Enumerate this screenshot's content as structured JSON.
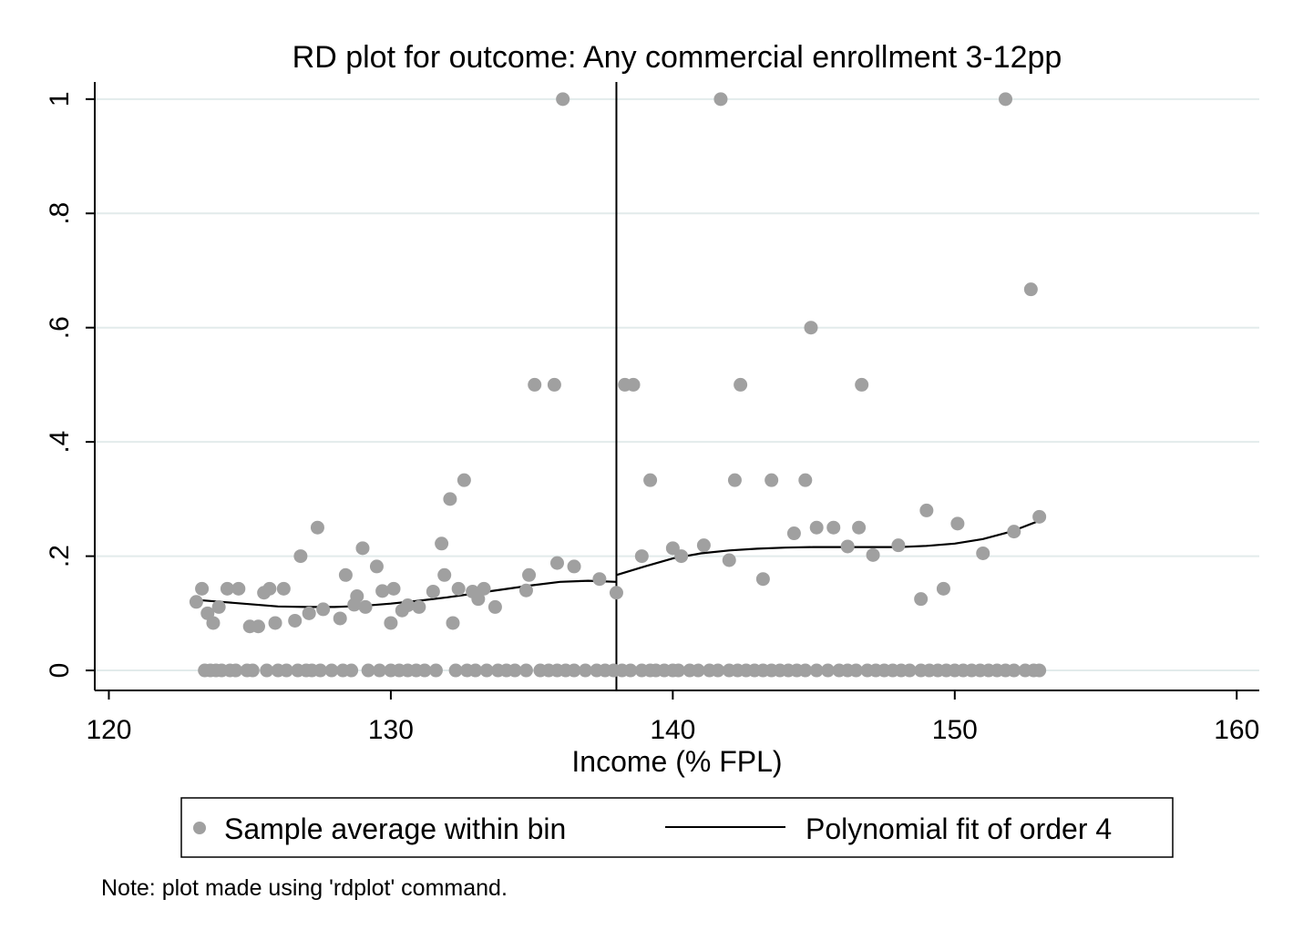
{
  "chart_data": {
    "type": "scatter",
    "title": "RD plot for outcome: Any commercial enrollment 3-12pp",
    "xlabel": "Income (% FPL)",
    "ylabel": "",
    "xlim": [
      119.5,
      160.8
    ],
    "ylim": [
      -0.035,
      1.03
    ],
    "x_ticks": [
      120,
      130,
      140,
      150,
      160
    ],
    "x_tick_labels": [
      "120",
      "130",
      "140",
      "150",
      "160"
    ],
    "y_ticks": [
      0,
      0.2,
      0.4,
      0.6,
      0.8,
      1
    ],
    "y_tick_labels": [
      "0",
      ".2",
      ".4",
      ".6",
      ".8",
      "1"
    ],
    "grid": true,
    "cutoff": 138,
    "legend": {
      "position": "bottom",
      "entries": [
        "Sample average within bin",
        "Polynomial fit of order 4"
      ]
    },
    "note": "Note: plot made using 'rdplot' command.",
    "colors": {
      "points": "#a0a0a0",
      "fit": "#000000",
      "grid": "#e2ebeb",
      "axis": "#000000"
    },
    "series": [
      {
        "name": "Sample average within bin",
        "kind": "points",
        "points": [
          [
            123.1,
            0.12
          ],
          [
            123.3,
            0.143
          ],
          [
            123.5,
            0.1
          ],
          [
            123.7,
            0.083
          ],
          [
            123.9,
            0.111
          ],
          [
            124.2,
            0.143
          ],
          [
            124.6,
            0.143
          ],
          [
            125.0,
            0.077
          ],
          [
            125.3,
            0.077
          ],
          [
            125.5,
            0.136
          ],
          [
            125.7,
            0.143
          ],
          [
            125.9,
            0.083
          ],
          [
            126.2,
            0.143
          ],
          [
            126.6,
            0.087
          ],
          [
            126.8,
            0.2
          ],
          [
            127.1,
            0.1
          ],
          [
            127.4,
            0.25
          ],
          [
            127.6,
            0.107
          ],
          [
            128.2,
            0.091
          ],
          [
            128.4,
            0.167
          ],
          [
            128.7,
            0.115
          ],
          [
            128.8,
            0.13
          ],
          [
            129.0,
            0.214
          ],
          [
            129.1,
            0.111
          ],
          [
            129.5,
            0.182
          ],
          [
            129.7,
            0.139
          ],
          [
            130.0,
            0.083
          ],
          [
            130.1,
            0.143
          ],
          [
            130.4,
            0.105
          ],
          [
            130.6,
            0.114
          ],
          [
            131.0,
            0.111
          ],
          [
            131.5,
            0.138
          ],
          [
            131.8,
            0.222
          ],
          [
            131.9,
            0.167
          ],
          [
            132.1,
            0.3
          ],
          [
            132.2,
            0.083
          ],
          [
            132.4,
            0.143
          ],
          [
            132.6,
            0.333
          ],
          [
            132.9,
            0.138
          ],
          [
            133.1,
            0.125
          ],
          [
            133.3,
            0.143
          ],
          [
            133.7,
            0.111
          ],
          [
            134.8,
            0.14
          ],
          [
            134.9,
            0.167
          ],
          [
            135.1,
            0.5
          ],
          [
            135.8,
            0.5
          ],
          [
            135.9,
            0.188
          ],
          [
            136.1,
            1.0
          ],
          [
            136.5,
            0.182
          ],
          [
            137.4,
            0.16
          ],
          [
            138.0,
            0.136
          ],
          [
            138.3,
            0.5
          ],
          [
            138.6,
            0.5
          ],
          [
            138.9,
            0.2
          ],
          [
            139.2,
            0.333
          ],
          [
            140.0,
            0.214
          ],
          [
            140.3,
            0.2
          ],
          [
            141.1,
            0.219
          ],
          [
            141.7,
            1.0
          ],
          [
            142.0,
            0.193
          ],
          [
            142.2,
            0.333
          ],
          [
            142.4,
            0.5
          ],
          [
            143.2,
            0.16
          ],
          [
            143.5,
            0.333
          ],
          [
            144.3,
            0.24
          ],
          [
            144.7,
            0.333
          ],
          [
            144.9,
            0.6
          ],
          [
            145.1,
            0.25
          ],
          [
            145.7,
            0.25
          ],
          [
            146.2,
            0.217
          ],
          [
            146.6,
            0.25
          ],
          [
            146.7,
            0.5
          ],
          [
            147.1,
            0.202
          ],
          [
            148.0,
            0.219
          ],
          [
            148.8,
            0.125
          ],
          [
            149.0,
            0.28
          ],
          [
            149.6,
            0.143
          ],
          [
            150.1,
            0.257
          ],
          [
            151.0,
            0.205
          ],
          [
            151.8,
            1.0
          ],
          [
            152.1,
            0.243
          ],
          [
            152.7,
            0.667
          ],
          [
            153.0,
            0.269
          ],
          [
            123.4,
            0
          ],
          [
            123.6,
            0
          ],
          [
            123.8,
            0
          ],
          [
            124.0,
            0
          ],
          [
            124.3,
            0
          ],
          [
            124.5,
            0
          ],
          [
            124.9,
            0
          ],
          [
            125.1,
            0
          ],
          [
            125.6,
            0
          ],
          [
            126.0,
            0
          ],
          [
            126.3,
            0
          ],
          [
            126.7,
            0
          ],
          [
            127.0,
            0
          ],
          [
            127.2,
            0
          ],
          [
            127.5,
            0
          ],
          [
            127.9,
            0
          ],
          [
            128.3,
            0
          ],
          [
            128.6,
            0
          ],
          [
            129.2,
            0
          ],
          [
            129.6,
            0
          ],
          [
            130.0,
            0
          ],
          [
            130.3,
            0
          ],
          [
            130.6,
            0
          ],
          [
            130.9,
            0
          ],
          [
            131.2,
            0
          ],
          [
            131.6,
            0
          ],
          [
            132.3,
            0
          ],
          [
            132.7,
            0
          ],
          [
            133.0,
            0
          ],
          [
            133.4,
            0
          ],
          [
            133.8,
            0
          ],
          [
            134.1,
            0
          ],
          [
            134.4,
            0
          ],
          [
            134.8,
            0
          ],
          [
            135.3,
            0
          ],
          [
            135.6,
            0
          ],
          [
            135.9,
            0
          ],
          [
            136.2,
            0
          ],
          [
            136.5,
            0
          ],
          [
            136.9,
            0
          ],
          [
            137.3,
            0
          ],
          [
            137.6,
            0
          ],
          [
            137.9,
            0
          ],
          [
            138.2,
            0
          ],
          [
            138.5,
            0
          ],
          [
            138.9,
            0
          ],
          [
            139.2,
            0
          ],
          [
            139.4,
            0
          ],
          [
            139.7,
            0
          ],
          [
            140.0,
            0
          ],
          [
            140.2,
            0
          ],
          [
            140.6,
            0
          ],
          [
            140.9,
            0
          ],
          [
            141.3,
            0
          ],
          [
            141.6,
            0
          ],
          [
            142.0,
            0
          ],
          [
            142.3,
            0
          ],
          [
            142.6,
            0
          ],
          [
            142.9,
            0
          ],
          [
            143.2,
            0
          ],
          [
            143.5,
            0
          ],
          [
            143.8,
            0
          ],
          [
            144.1,
            0
          ],
          [
            144.4,
            0
          ],
          [
            144.7,
            0
          ],
          [
            145.1,
            0
          ],
          [
            145.5,
            0
          ],
          [
            145.9,
            0
          ],
          [
            146.2,
            0
          ],
          [
            146.5,
            0
          ],
          [
            146.9,
            0
          ],
          [
            147.2,
            0
          ],
          [
            147.5,
            0
          ],
          [
            147.8,
            0
          ],
          [
            148.1,
            0
          ],
          [
            148.4,
            0
          ],
          [
            148.8,
            0
          ],
          [
            149.1,
            0
          ],
          [
            149.4,
            0
          ],
          [
            149.7,
            0
          ],
          [
            150.0,
            0
          ],
          [
            150.3,
            0
          ],
          [
            150.6,
            0
          ],
          [
            150.9,
            0
          ],
          [
            151.2,
            0
          ],
          [
            151.5,
            0
          ],
          [
            151.8,
            0
          ],
          [
            152.1,
            0
          ],
          [
            152.5,
            0
          ],
          [
            152.8,
            0
          ],
          [
            153.0,
            0
          ]
        ]
      },
      {
        "name": "Polynomial fit of order 4",
        "kind": "line",
        "segments": [
          [
            [
              123.0,
              0.124
            ],
            [
              124.0,
              0.12
            ],
            [
              125.0,
              0.116
            ],
            [
              126.0,
              0.112
            ],
            [
              127.0,
              0.111
            ],
            [
              128.0,
              0.111
            ],
            [
              129.0,
              0.113
            ],
            [
              130.0,
              0.117
            ],
            [
              131.0,
              0.122
            ],
            [
              132.0,
              0.128
            ],
            [
              133.0,
              0.135
            ],
            [
              134.0,
              0.142
            ],
            [
              135.0,
              0.149
            ],
            [
              136.0,
              0.155
            ],
            [
              137.0,
              0.157
            ],
            [
              138.0,
              0.155
            ]
          ],
          [
            [
              138.0,
              0.167
            ],
            [
              139.0,
              0.182
            ],
            [
              140.0,
              0.196
            ],
            [
              141.0,
              0.205
            ],
            [
              142.0,
              0.21
            ],
            [
              143.0,
              0.213
            ],
            [
              144.0,
              0.215
            ],
            [
              145.0,
              0.216
            ],
            [
              146.0,
              0.216
            ],
            [
              147.0,
              0.216
            ],
            [
              148.0,
              0.216
            ],
            [
              149.0,
              0.218
            ],
            [
              150.0,
              0.222
            ],
            [
              151.0,
              0.23
            ],
            [
              152.0,
              0.243
            ],
            [
              153.0,
              0.262
            ]
          ]
        ]
      }
    ]
  }
}
